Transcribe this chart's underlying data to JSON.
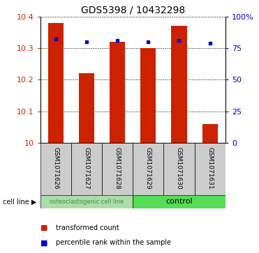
{
  "title": "GDS5398 / 10432298",
  "samples": [
    "GSM1071626",
    "GSM1071627",
    "GSM1071628",
    "GSM1071629",
    "GSM1071630",
    "GSM1071631"
  ],
  "red_values": [
    10.38,
    10.22,
    10.32,
    10.3,
    10.37,
    10.06
  ],
  "blue_values": [
    82,
    80,
    81,
    80,
    81,
    79
  ],
  "ylim_left": [
    10.0,
    10.4
  ],
  "ylim_right": [
    0,
    100
  ],
  "yticks_left": [
    10.0,
    10.1,
    10.2,
    10.3,
    10.4
  ],
  "ytick_left_labels": [
    "10",
    "10.1",
    "10.2",
    "10.3",
    "10.4"
  ],
  "yticks_right": [
    0,
    25,
    50,
    75,
    100
  ],
  "ytick_right_labels": [
    "0",
    "25",
    "50",
    "75",
    "100%"
  ],
  "bar_color": "#cc2200",
  "dot_color": "#0000cc",
  "background_color": "#ffffff",
  "group1_label": "osteoclastogenic cell line",
  "group2_label": "control",
  "group1_color": "#aaddaa",
  "group2_color": "#55dd55",
  "group1_text_color": "#448844",
  "group2_text_color": "#000000",
  "group1_indices": [
    0,
    1,
    2
  ],
  "group2_indices": [
    3,
    4,
    5
  ],
  "label_bg_color": "#cccccc",
  "cell_line_label": "cell line",
  "legend_red": "transformed count",
  "legend_blue": "percentile rank within the sample",
  "bar_width": 0.5
}
